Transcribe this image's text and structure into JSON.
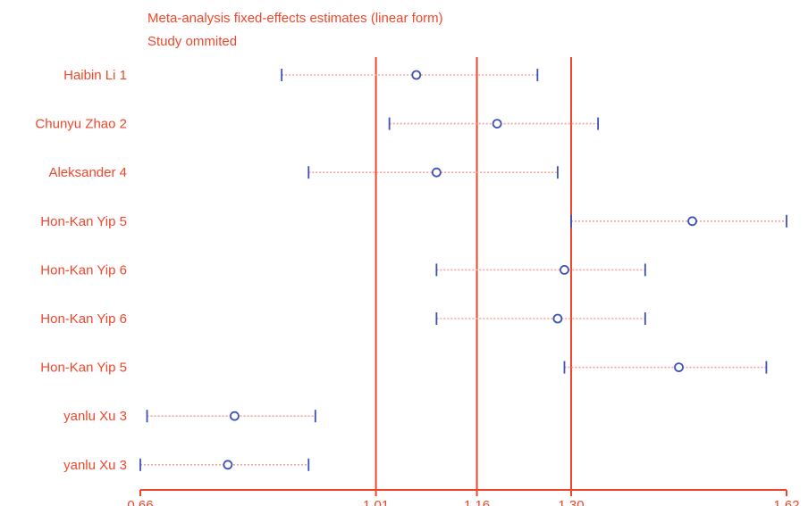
{
  "chart_data": {
    "type": "forest",
    "title": "Meta-analysis fixed-effects estimates (linear form)",
    "subtitle": "Study ommited",
    "xlim": [
      0.66,
      1.62
    ],
    "x_ticks": [
      "0.66",
      "1.01",
      "1.16",
      "1.30",
      "1.62"
    ],
    "reference_lines": [
      1.01,
      1.16,
      1.3
    ],
    "studies": [
      {
        "label": "Haibin Li 1",
        "estimate": 1.07,
        "lower": 0.87,
        "upper": 1.25
      },
      {
        "label": "Chunyu Zhao 2",
        "estimate": 1.19,
        "lower": 1.03,
        "upper": 1.34
      },
      {
        "label": "Aleksander 4",
        "estimate": 1.1,
        "lower": 0.91,
        "upper": 1.28
      },
      {
        "label": "Hon-Kan Yip 5",
        "estimate": 1.48,
        "lower": 1.3,
        "upper": 1.62
      },
      {
        "label": "Hon-Kan Yip 6",
        "estimate": 1.29,
        "lower": 1.1,
        "upper": 1.41
      },
      {
        "label": "Hon-Kan Yip 6",
        "estimate": 1.28,
        "lower": 1.1,
        "upper": 1.41
      },
      {
        "label": "Hon-Kan Yip 5",
        "estimate": 1.46,
        "lower": 1.29,
        "upper": 1.59
      },
      {
        "label": "yanlu Xu 3",
        "estimate": 0.8,
        "lower": 0.67,
        "upper": 0.92
      },
      {
        "label": "yanlu Xu 3",
        "estimate": 0.79,
        "lower": 0.66,
        "upper": 0.91
      }
    ]
  },
  "colors": {
    "accent": "#f0472c",
    "marker": "#3c52b8",
    "whisker": "#f4a3a0"
  }
}
